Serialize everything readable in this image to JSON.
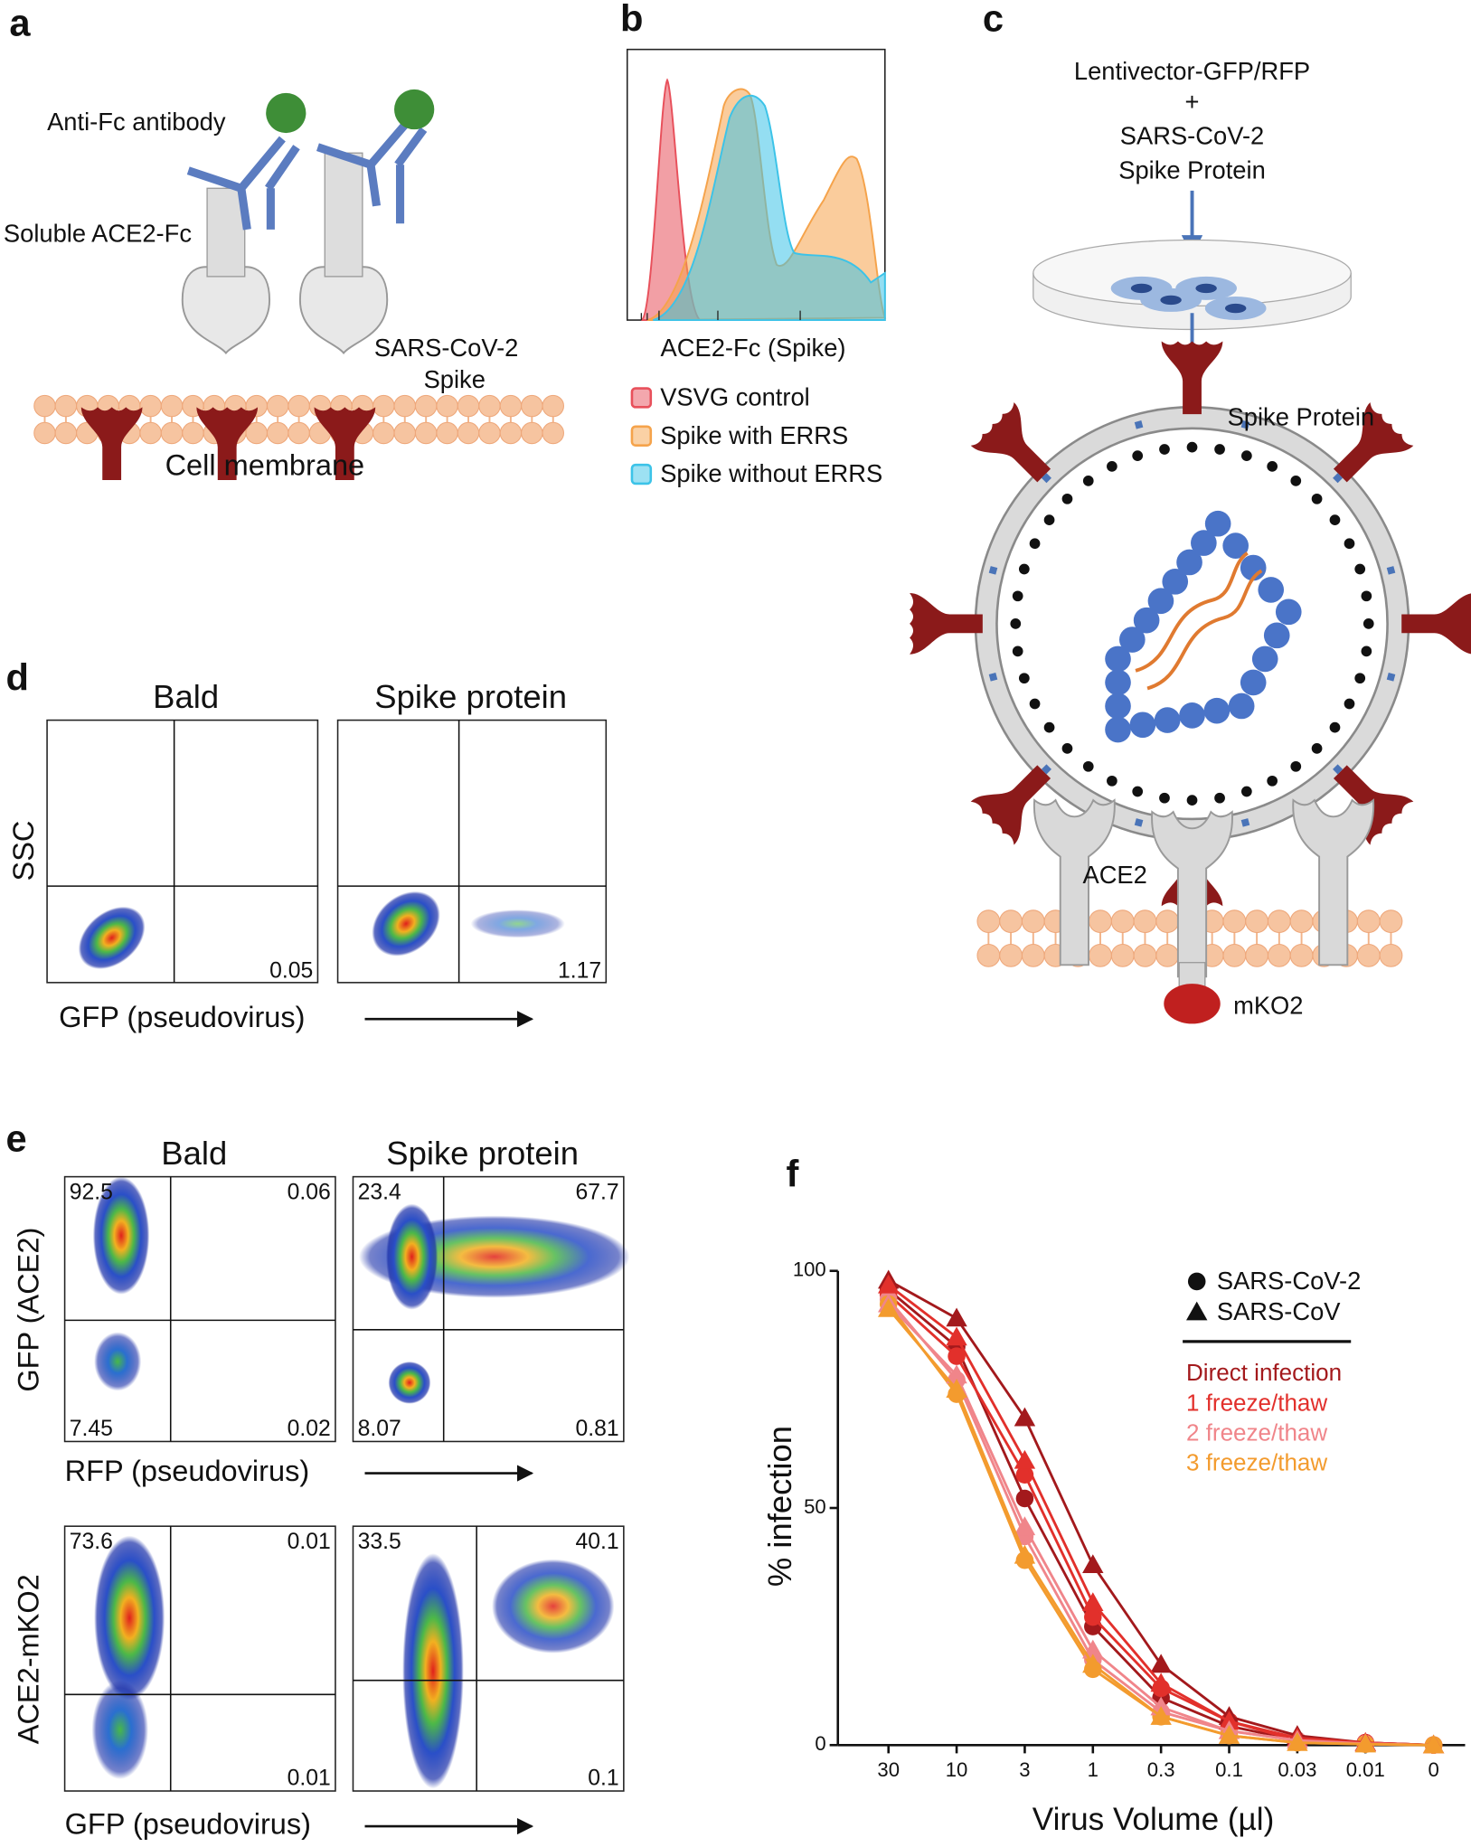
{
  "panels": {
    "a": {
      "label": "a",
      "antibody": "Anti-Fc antibody",
      "receptor": "Soluble ACE2-Fc",
      "spike_line1": "SARS-CoV-2",
      "spike_line2": "Spike",
      "membrane": "Cell membrane"
    },
    "b": {
      "label": "b",
      "xlabel": "ACE2-Fc (Spike)",
      "legend": [
        {
          "name": "VSVG control",
          "color": "#e8505b"
        },
        {
          "name": "Spike with ERRS",
          "color": "#f5a34b"
        },
        {
          "name": "Spike without ERRS",
          "color": "#3cc3e8"
        }
      ]
    },
    "c": {
      "label": "c",
      "line1": "Lentivector-GFP/RFP",
      "line2": "+",
      "line3": "SARS-CoV-2",
      "line4": "Spike Protein",
      "spike": "Spike Protein",
      "receptor": "ACE2",
      "reporter": "mKO2"
    },
    "d": {
      "label": "d",
      "columns": [
        "Bald",
        "Spike protein"
      ],
      "ylabel": "SSC",
      "xlabel": "GFP (pseudovirus)",
      "gates": [
        0.05,
        1.17
      ]
    },
    "e": {
      "label": "e",
      "columns": [
        "Bald",
        "Spike protein"
      ],
      "rows": [
        {
          "ylabel": "GFP (ACE2)",
          "xlabel": "RFP (pseudovirus)",
          "plots": [
            [
              92.5,
              0.06,
              7.45,
              0.02
            ],
            [
              23.4,
              67.7,
              8.07,
              0.81
            ]
          ]
        },
        {
          "ylabel": "ACE2-mKO2",
          "xlabel": "GFP (pseudovirus)",
          "plots": [
            [
              73.6,
              0.01,
              null,
              0.01
            ],
            [
              33.5,
              40.1,
              null,
              0.1
            ]
          ]
        }
      ]
    },
    "f": {
      "label": "f"
    }
  },
  "chart_data": {
    "type": "line",
    "xlabel": "Virus Volume (µl)",
    "ylabel": "% infection",
    "categories": [
      "30",
      "10",
      "3",
      "1",
      "0.3",
      "0.1",
      "0.03",
      "0.01",
      "0"
    ],
    "ylim": [
      0,
      100
    ],
    "yticks": [
      0,
      50,
      100
    ],
    "conditions": [
      {
        "name": "Direct infection",
        "color": "#a3191c"
      },
      {
        "name": "1 freeze/thaw",
        "color": "#e2302b"
      },
      {
        "name": "2 freeze/thaw",
        "color": "#f0858a"
      },
      {
        "name": "3 freeze/thaw",
        "color": "#f39b2e"
      }
    ],
    "viruses": [
      {
        "name": "SARS-CoV-2",
        "marker": "circle",
        "series": [
          {
            "values": [
              96,
              84,
              52,
              25,
              10,
              4,
              1,
              0.5,
              0
            ]
          },
          {
            "values": [
              95,
              82,
              57,
              27,
              12,
              5,
              1,
              0.5,
              0
            ]
          },
          {
            "values": [
              94,
              77,
              44,
              18,
              7,
              3,
              1,
              0.3,
              0
            ]
          },
          {
            "values": [
              93,
              74,
              39,
              16,
              6,
              2,
              0.5,
              0.2,
              0
            ]
          }
        ]
      },
      {
        "name": "SARS-CoV",
        "marker": "triangle",
        "series": [
          {
            "values": [
              98,
              90,
              69,
              38,
              17,
              6,
              2,
              0.5,
              0
            ]
          },
          {
            "values": [
              97,
              86,
              60,
              30,
              13,
              5,
              1.5,
              0.5,
              0
            ]
          },
          {
            "values": [
              93,
              78,
              46,
              20,
              8,
              3,
              1,
              0.3,
              0
            ]
          },
          {
            "values": [
              92,
              75,
              40,
              17,
              6,
              2,
              0.5,
              0.2,
              0
            ]
          }
        ]
      }
    ]
  }
}
